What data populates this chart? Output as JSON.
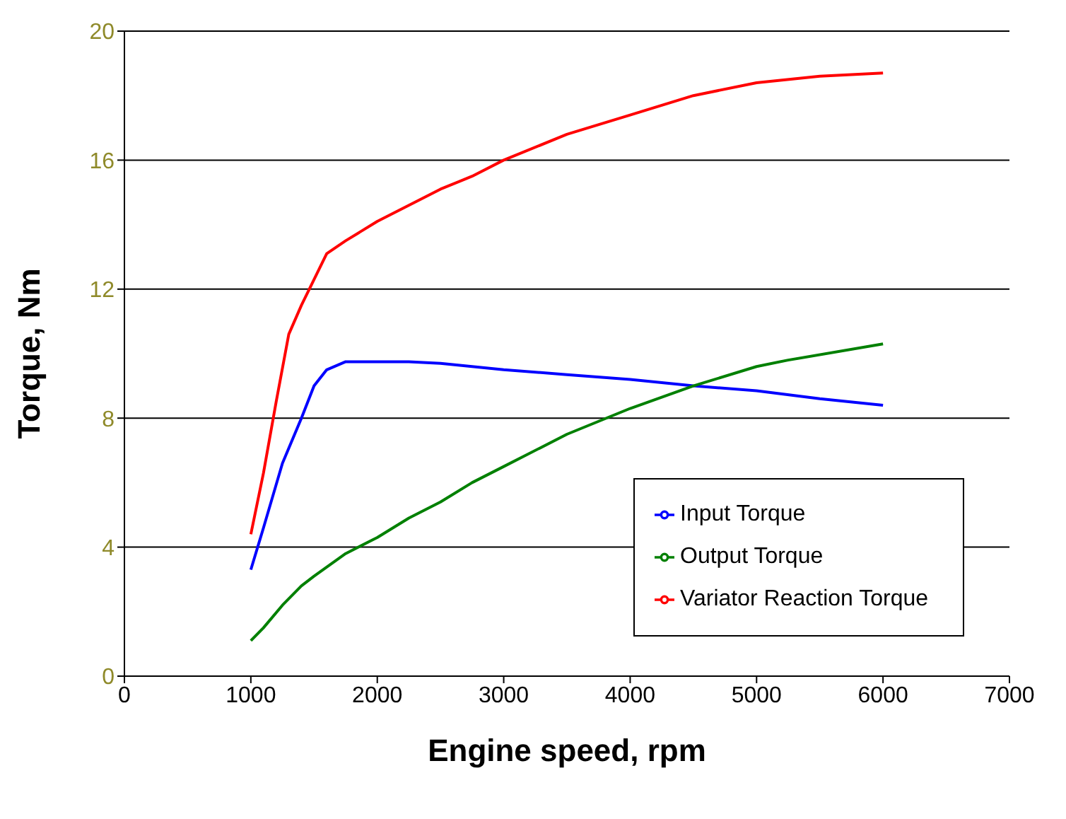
{
  "chart_data": {
    "type": "line",
    "xlabel": "Engine speed,  rpm",
    "ylabel": "Torque,  Nm",
    "xlim": [
      0,
      7000
    ],
    "xticks": [
      0,
      1000,
      2000,
      3000,
      4000,
      5000,
      6000,
      7000
    ],
    "ylim": [
      0,
      20
    ],
    "yticks": [
      0,
      4,
      8,
      12,
      16,
      20
    ],
    "grid": "y",
    "legend": "bottom right",
    "marker": "none",
    "line_style": "solid",
    "series": [
      {
        "name": "Input Torque",
        "color": "#0000ff",
        "x": [
          1000,
          1100,
          1250,
          1400,
          1500,
          1600,
          1750,
          2000,
          2250,
          2500,
          2750,
          3000,
          3500,
          4000,
          4500,
          5000,
          5500,
          6000
        ],
        "values": [
          3.3,
          4.6,
          6.6,
          8.0,
          9.0,
          9.5,
          9.75,
          9.75,
          9.75,
          9.7,
          9.6,
          9.5,
          9.35,
          9.2,
          9.0,
          8.85,
          8.6,
          8.4
        ]
      },
      {
        "name": "Output Torque",
        "color": "#008000",
        "x": [
          1000,
          1100,
          1250,
          1400,
          1500,
          1750,
          2000,
          2250,
          2500,
          2750,
          3000,
          3500,
          4000,
          4500,
          5000,
          5250,
          6000
        ],
        "values": [
          1.1,
          1.5,
          2.2,
          2.8,
          3.1,
          3.8,
          4.3,
          4.9,
          5.4,
          6.0,
          6.5,
          7.5,
          8.3,
          9.0,
          9.6,
          9.8,
          10.3
        ]
      },
      {
        "name": "Variator Reaction Torque",
        "color": "#ff0000",
        "x": [
          1000,
          1100,
          1200,
          1300,
          1400,
          1500,
          1600,
          1750,
          2000,
          2250,
          2500,
          2750,
          3000,
          3500,
          4000,
          4500,
          5000,
          5500,
          6000
        ],
        "values": [
          4.4,
          6.3,
          8.5,
          10.6,
          11.5,
          12.3,
          13.1,
          13.5,
          14.1,
          14.6,
          15.1,
          15.5,
          16.0,
          16.8,
          17.4,
          18.0,
          18.4,
          18.6,
          18.7
        ]
      }
    ]
  }
}
